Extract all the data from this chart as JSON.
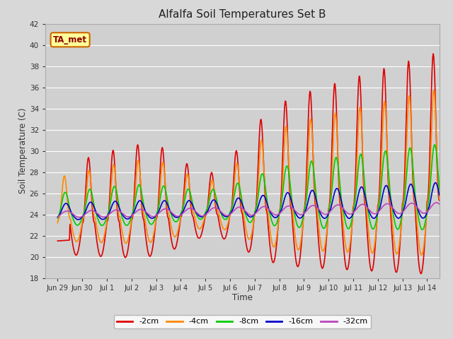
{
  "title": "Alfalfa Soil Temperatures Set B",
  "xlabel": "Time",
  "ylabel": "Soil Temperature (C)",
  "ylim": [
    18,
    42
  ],
  "xlim": [
    -0.5,
    15.5
  ],
  "annotation_text": "TA_met",
  "annotation_bg": "#ffff99",
  "annotation_border": "#cc6600",
  "tick_labels": [
    "Jun 29",
    "Jun 30",
    "Jul 1",
    "Jul 2",
    "Jul 3",
    "Jul 4",
    "Jul 5",
    "Jul 6",
    "Jul 7",
    "Jul 8",
    "Jul 9",
    "Jul 10",
    "Jul 11",
    "Jul 12",
    "Jul 13",
    "Jul 14"
  ],
  "tick_positions": [
    0,
    1,
    2,
    3,
    4,
    5,
    6,
    7,
    8,
    9,
    10,
    11,
    12,
    13,
    14,
    15
  ],
  "series": {
    "-2cm": {
      "color": "#dd0000",
      "linewidth": 1.2
    },
    "-4cm": {
      "color": "#ff8800",
      "linewidth": 1.2
    },
    "-8cm": {
      "color": "#00cc00",
      "linewidth": 1.2
    },
    "-16cm": {
      "color": "#0000cc",
      "linewidth": 1.2
    },
    "-32cm": {
      "color": "#bb44bb",
      "linewidth": 1.2
    }
  }
}
